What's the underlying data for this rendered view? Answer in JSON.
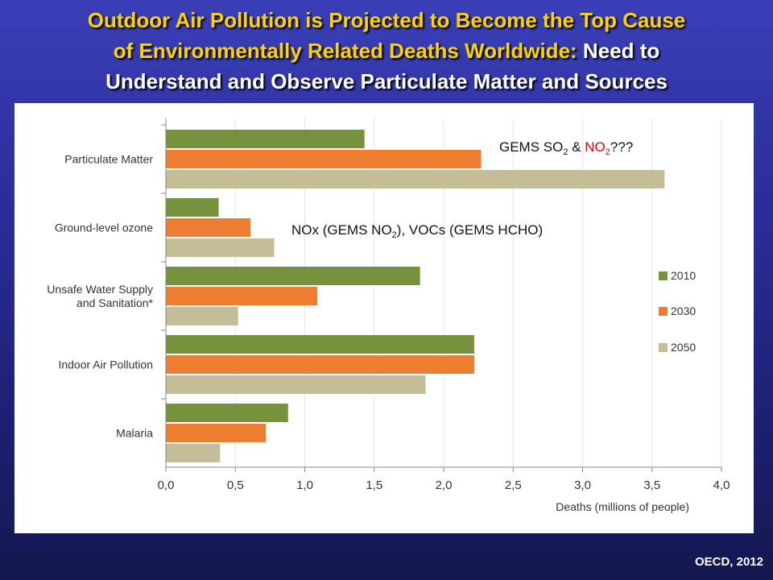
{
  "slide": {
    "title_line1": "Outdoor Air Pollution is Projected to Become the Top Cause",
    "title_line2_yellow": "of Environmentally Related Deaths Worldwide:",
    "title_line2_white": " Need to",
    "title_line3": "Understand and Observe Particulate Matter and Sources",
    "source": "OECD, 2012"
  },
  "annotations": {
    "gems": {
      "prefix": "GEMS SO",
      "sub1": "2",
      "mid": " & ",
      "red": "NO",
      "sub2": "2",
      "suffix": "???"
    },
    "nox": {
      "prefix": "NOx (GEMS NO",
      "sub": "2",
      "suffix": "), VOCs (GEMS HCHO)"
    }
  },
  "colors": {
    "series_2010": "#76923c",
    "series_2030": "#ed7d31",
    "series_2050": "#c4bd97",
    "highlight_red": "#e00000"
  },
  "chart_data": {
    "type": "bar",
    "orientation": "horizontal",
    "categories": [
      [
        "Particulate Matter"
      ],
      [
        "Ground-level ozone"
      ],
      [
        "Unsafe Water Supply",
        "and Sanitation*"
      ],
      [
        "Indoor Air Pollution"
      ],
      [
        "Malaria"
      ]
    ],
    "series": [
      {
        "name": "2010",
        "values": [
          1.43,
          0.38,
          1.83,
          2.22,
          0.88
        ]
      },
      {
        "name": "2030",
        "values": [
          2.27,
          0.61,
          1.09,
          2.22,
          0.72
        ]
      },
      {
        "name": "2050",
        "values": [
          3.59,
          0.78,
          0.52,
          1.87,
          0.39
        ]
      }
    ],
    "xlim": [
      0,
      4.0
    ],
    "xticks": [
      "0,0",
      "0,5",
      "1,0",
      "1,5",
      "2,0",
      "2,5",
      "3,0",
      "3,5",
      "4,0"
    ],
    "xlabel": "Deaths (millions of people)",
    "grid": true,
    "legend_position": "right"
  }
}
